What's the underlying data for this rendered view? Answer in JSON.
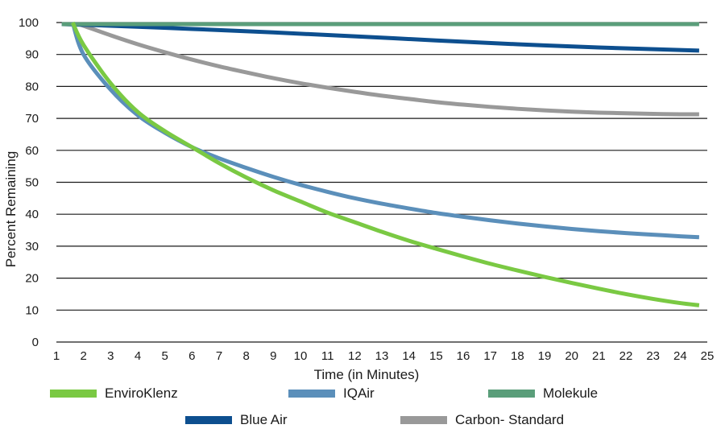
{
  "chart_data": {
    "type": "line",
    "title": "",
    "xlabel": "Time (in Minutes)",
    "ylabel": "Percent Remaining",
    "xlim": [
      1,
      25
    ],
    "ylim": [
      0,
      100
    ],
    "x_ticks": [
      "1",
      "2",
      "3",
      "4",
      "5",
      "6",
      "7",
      "8",
      "9",
      "10",
      "11",
      "12",
      "13",
      "14",
      "15",
      "16",
      "17",
      "18",
      "19",
      "20",
      "21",
      "22",
      "23",
      "24",
      "25"
    ],
    "y_ticks": [
      "0",
      "10",
      "20",
      "30",
      "40",
      "50",
      "60",
      "70",
      "80",
      "90",
      "100"
    ],
    "grid": "horizontal",
    "legend_placement": "bottom",
    "series": [
      {
        "name": "EnviroKlenz",
        "color": "#7ac943",
        "x": [
          1.6,
          2,
          3,
          4,
          5,
          6,
          7,
          8,
          9,
          10,
          11,
          12,
          13,
          14,
          15,
          16,
          17,
          18,
          19,
          20,
          21,
          22,
          23,
          24,
          24.7
        ],
        "y": [
          100,
          93,
          81,
          72,
          66,
          61,
          56,
          51.5,
          47.5,
          44,
          40.5,
          37.5,
          34.5,
          31.7,
          29.2,
          26.8,
          24.5,
          22.4,
          20.4,
          18.5,
          16.7,
          15,
          13.5,
          12.2,
          11.5
        ]
      },
      {
        "name": "IQAir",
        "color": "#5b8fba",
        "x": [
          1.6,
          2,
          3,
          4,
          5,
          6,
          7,
          8,
          9,
          10,
          11,
          12,
          13,
          14,
          15,
          16,
          17,
          18,
          19,
          20,
          21,
          22,
          23,
          24,
          24.7
        ],
        "y": [
          100,
          90,
          79,
          71,
          65.5,
          61,
          57.5,
          54.5,
          51.7,
          49.2,
          47,
          45,
          43.3,
          41.8,
          40.4,
          39.2,
          38.1,
          37.1,
          36.2,
          35.4,
          34.7,
          34.1,
          33.6,
          33.1,
          32.8
        ]
      },
      {
        "name": "Molekule",
        "color": "#5a9e7a",
        "x": [
          1.2,
          24.7
        ],
        "y": [
          99.5,
          99.5
        ]
      },
      {
        "name": "Blue Air",
        "color": "#0d4f8f",
        "x": [
          1.2,
          3,
          6,
          9,
          12,
          15,
          18,
          21,
          24.7
        ],
        "y": [
          99.5,
          99,
          98,
          96.9,
          95.7,
          94.4,
          93.2,
          92.2,
          91.2
        ]
      },
      {
        "name": "Carbon- Standard",
        "color": "#999999",
        "x": [
          1.8,
          2,
          3,
          4,
          5,
          6,
          7,
          8,
          9,
          10,
          11,
          12,
          13,
          14,
          15,
          16,
          17,
          18,
          19,
          20,
          21,
          22,
          23,
          24,
          24.7
        ],
        "y": [
          99.5,
          99,
          96,
          93.2,
          90.7,
          88.4,
          86.3,
          84.4,
          82.6,
          81,
          79.6,
          78.3,
          77.1,
          76.1,
          75.1,
          74.3,
          73.6,
          73,
          72.5,
          72.1,
          71.8,
          71.6,
          71.4,
          71.3,
          71.3
        ]
      }
    ]
  }
}
